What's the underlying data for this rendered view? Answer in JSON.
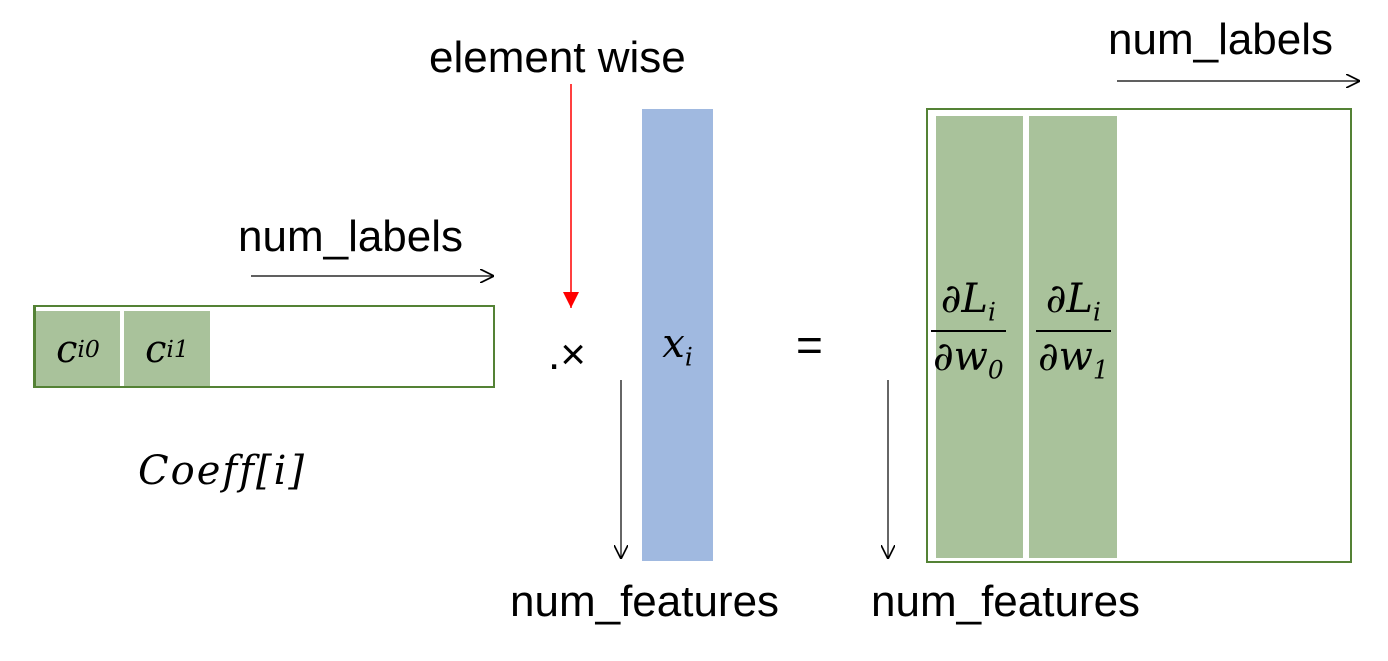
{
  "labels": {
    "element_wise": "element wise",
    "num_labels_left": "num_labels",
    "num_labels_right": "num_labels",
    "num_features_mid": "num_features",
    "num_features_right": "num_features",
    "coeff": "Coeff[i]",
    "elementwise_op": ".×",
    "equals": "="
  },
  "coeff_vector": {
    "cells": [
      {
        "base": "c",
        "sub": "i0"
      },
      {
        "base": "c",
        "sub": "i1"
      }
    ]
  },
  "x_vector": {
    "base": "x",
    "sub": "i"
  },
  "gradient_matrix": {
    "columns": [
      {
        "num_base": "∂L",
        "num_sub": "i",
        "den_base": "∂w",
        "den_sub": "0"
      },
      {
        "num_base": "∂L",
        "num_sub": "i",
        "den_base": "∂w",
        "den_sub": "1"
      }
    ]
  },
  "colors": {
    "green_fill": "#a9c29b",
    "green_border": "#548235",
    "blue_fill": "#a0b9e0",
    "red_arrow": "#ff0000"
  }
}
